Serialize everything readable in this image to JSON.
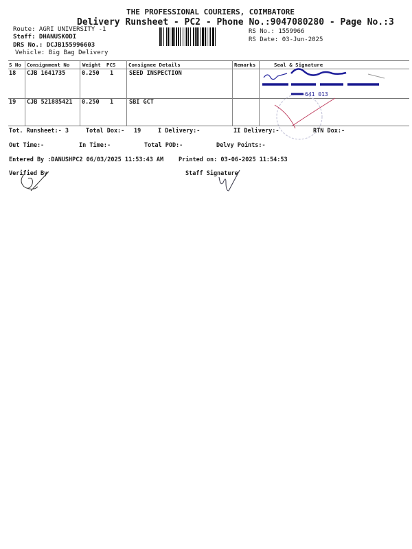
{
  "header": {
    "company": "THE PROFESSIONAL COURIERS, COIMBATORE",
    "subtitle": "Delivery Runsheet - PC2 - Phone No.:9047080280 - Page No.:3",
    "route": "Route: AGRI UNIVERSITY -1",
    "staff": "Staff: DHANUSKODI",
    "drs": "DRS No.: DCJB155996603",
    "vehicle": "Vehicle: Big Bag Delivery",
    "rs_no": "RS No.: 1559966",
    "rs_date": "RS Date: 03-Jun-2025"
  },
  "table": {
    "columns": [
      "S No",
      "Consignment No",
      "Weight",
      "PCS",
      "Consignee Details",
      "Remarks",
      "Seal & Signature"
    ],
    "rows": [
      {
        "sno": "18",
        "consignment": "CJB 1641735",
        "weight": "0.250",
        "pcs": "1",
        "consignee": "SEED INSPECTION",
        "remarks": ""
      },
      {
        "sno": "19",
        "consignment": "CJB 521885421",
        "weight": "0.250",
        "pcs": "1",
        "consignee": "SBI GCT",
        "remarks": ""
      }
    ]
  },
  "stamp": {
    "pin_text": "641 013"
  },
  "totals": {
    "runsheet": "Tot. Runsheet:- 3",
    "total_dox": "Total Dox:-",
    "total_dox_value": "19",
    "i_delivery": "I Delivery:-",
    "ii_delivery": "II Delivery:-",
    "rtn_dox": "RTN Dox:-",
    "out_time": "Out Time:-",
    "in_time": "In Time:-",
    "total_pod": "Total POD:-",
    "delvy_points": "Delvy Points:-"
  },
  "footer": {
    "entered_by": "Entered By :DANUSHPC2 06/03/2025 11:53:43 AM",
    "printed_on": "Printed on: 03-06-2025 11:54:53",
    "verified_by": "Verified By",
    "staff_signature": "Staff Signature"
  }
}
